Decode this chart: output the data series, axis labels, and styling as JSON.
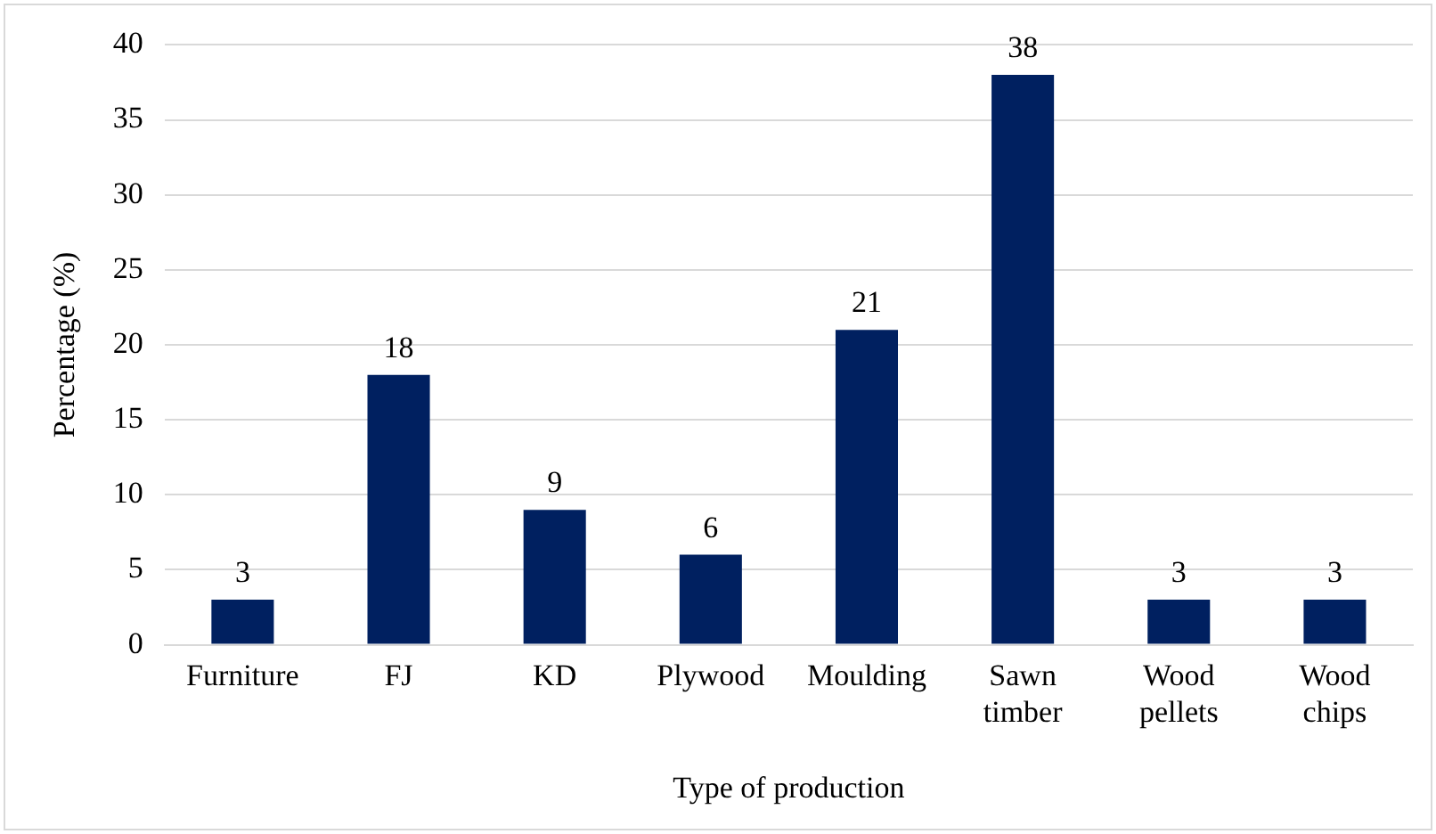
{
  "chart_data": {
    "type": "bar",
    "xlabel": "Type of production",
    "ylabel": "Percentage (%)",
    "categories": [
      "Furniture",
      "FJ",
      "KD",
      "Plywood",
      "Moulding",
      "Sawn timber",
      "Wood pellets",
      "Wood chips"
    ],
    "values": [
      3,
      18,
      9,
      6,
      21,
      38,
      3,
      3
    ],
    "color": "#002060",
    "ylim": [
      0,
      40
    ],
    "yticks": [
      0,
      5,
      10,
      15,
      20,
      25,
      30,
      35,
      40
    ],
    "grid": "y",
    "data_labels": true,
    "legend": false
  }
}
